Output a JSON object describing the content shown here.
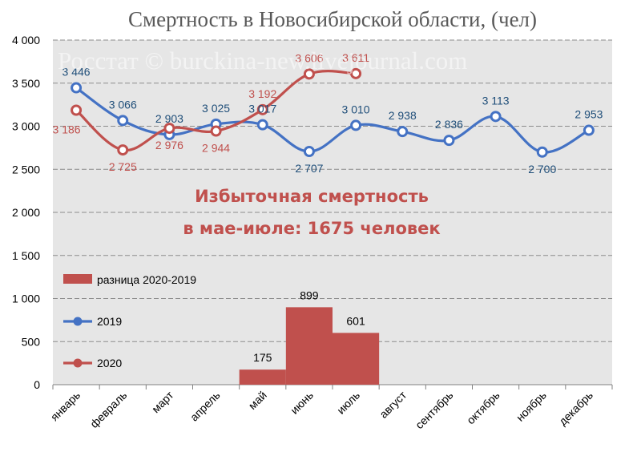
{
  "chart_data": {
    "type": "line",
    "title": "Смертность в Новосибирской области, (чел)",
    "watermark": "Росстат © burckina-new.livejournal.com",
    "annotation": [
      "Избыточная смертность",
      "в мае-июле: 1675 человек"
    ],
    "categories": [
      "январь",
      "февраль",
      "март",
      "апрель",
      "май",
      "июнь",
      "июль",
      "август",
      "сентябрь",
      "октябрь",
      "ноябрь",
      "декабрь"
    ],
    "ylim": [
      0,
      4000
    ],
    "yticks": [
      0,
      500,
      1000,
      1500,
      2000,
      2500,
      3000,
      3500,
      4000
    ],
    "ytick_labels": [
      "0",
      "500",
      "1 000",
      "1 500",
      "2 000",
      "2 500",
      "3 000",
      "3 500",
      "4 000"
    ],
    "grid": true,
    "legend_position": "left",
    "series": [
      {
        "name": "2019",
        "kind": "line",
        "color": "#4472C4",
        "label_color": "#1F4E79",
        "values": [
          3446,
          3066,
          2903,
          3025,
          3017,
          2707,
          3010,
          2938,
          2836,
          3113,
          2700,
          2953
        ],
        "labels": [
          "3 446",
          "3 066",
          "2 903",
          "3 025",
          "3 017",
          "2 707",
          "3 010",
          "2 938",
          "2 836",
          "3 113",
          "2 700",
          "2 953"
        ]
      },
      {
        "name": "2020",
        "kind": "line",
        "color": "#C0504D",
        "label_color": "#C0504D",
        "values": [
          3186,
          2725,
          2976,
          2944,
          3192,
          3606,
          3611,
          null,
          null,
          null,
          null,
          null
        ],
        "labels": [
          "3 186",
          "2 725",
          "2 976",
          "2 944",
          "3 192",
          "3 606",
          "3 611",
          "",
          "",
          "",
          "",
          ""
        ]
      },
      {
        "name": "разница 2020-2019",
        "kind": "bar",
        "color": "#C0504D",
        "values": [
          null,
          null,
          null,
          null,
          175,
          899,
          601,
          null,
          null,
          null,
          null,
          null
        ],
        "labels": [
          "",
          "",
          "",
          "",
          "175",
          "899",
          "601",
          "",
          "",
          "",
          "",
          ""
        ]
      }
    ]
  }
}
